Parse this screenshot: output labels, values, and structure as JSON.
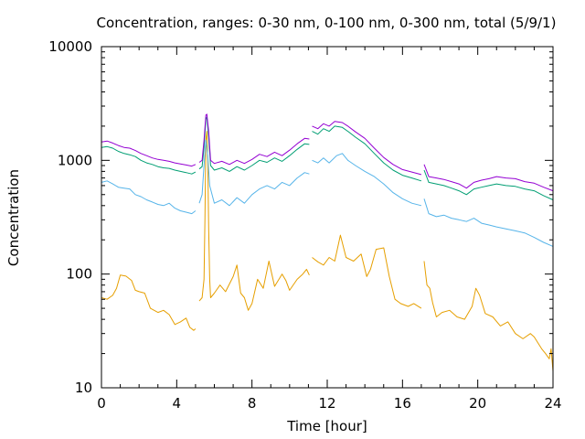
{
  "chart_data": {
    "type": "line",
    "title": "Concentration, ranges: 0-30 nm, 0-100 nm, 0-300 nm, total (5/9/1)",
    "xlabel": "Time [hour]",
    "ylabel": "Concentration",
    "xlim": [
      0,
      24
    ],
    "ylim": [
      10,
      10000
    ],
    "y_scale": "log",
    "x_ticks": [
      0,
      4,
      8,
      12,
      16,
      20,
      24
    ],
    "y_ticks": [
      10,
      100,
      1000,
      10000
    ],
    "y_tick_labels": [
      "10",
      "100",
      "1000",
      "10000"
    ],
    "grid": false,
    "series": [
      {
        "color": "#e69f00",
        "points": [
          [
            0.0,
            62
          ],
          [
            0.3,
            60
          ],
          [
            0.6,
            65
          ],
          [
            0.8,
            75
          ],
          [
            1.0,
            98
          ],
          [
            1.3,
            96
          ],
          [
            1.6,
            88
          ],
          [
            1.8,
            72
          ],
          [
            2.0,
            70
          ],
          [
            2.3,
            68
          ],
          [
            2.6,
            50
          ],
          [
            3.0,
            46
          ],
          [
            3.3,
            48
          ],
          [
            3.6,
            44
          ],
          [
            3.9,
            36
          ],
          [
            4.2,
            38
          ],
          [
            4.5,
            41
          ],
          [
            4.7,
            34
          ],
          [
            4.9,
            32
          ],
          [
            5.0,
            33
          ],
          null,
          [
            5.2,
            58
          ],
          [
            5.35,
            62
          ],
          [
            5.45,
            90
          ],
          [
            5.5,
            300
          ],
          [
            5.55,
            1500
          ],
          [
            5.6,
            1800
          ],
          [
            5.65,
            1000
          ],
          [
            5.7,
            250
          ],
          [
            5.75,
            90
          ],
          [
            5.8,
            62
          ],
          [
            6.0,
            68
          ],
          [
            6.3,
            80
          ],
          [
            6.6,
            70
          ],
          [
            7.0,
            95
          ],
          [
            7.2,
            120
          ],
          [
            7.4,
            68
          ],
          [
            7.6,
            62
          ],
          [
            7.8,
            48
          ],
          [
            8.0,
            55
          ],
          [
            8.3,
            90
          ],
          [
            8.6,
            75
          ],
          [
            8.9,
            130
          ],
          [
            9.2,
            78
          ],
          [
            9.6,
            100
          ],
          [
            9.8,
            88
          ],
          [
            10.0,
            72
          ],
          [
            10.4,
            90
          ],
          [
            10.7,
            100
          ],
          [
            10.9,
            110
          ],
          [
            11.05,
            98
          ],
          null,
          [
            11.2,
            140
          ],
          [
            11.5,
            128
          ],
          [
            11.8,
            120
          ],
          [
            12.1,
            140
          ],
          [
            12.4,
            130
          ],
          [
            12.7,
            220
          ],
          [
            13.0,
            140
          ],
          [
            13.4,
            130
          ],
          [
            13.8,
            150
          ],
          [
            14.1,
            95
          ],
          [
            14.3,
            110
          ],
          [
            14.6,
            165
          ],
          [
            15.0,
            170
          ],
          [
            15.3,
            95
          ],
          [
            15.6,
            60
          ],
          [
            15.9,
            55
          ],
          [
            16.3,
            52
          ],
          [
            16.6,
            55
          ],
          [
            17.0,
            50
          ],
          null,
          [
            17.15,
            130
          ],
          [
            17.3,
            80
          ],
          [
            17.45,
            75
          ],
          [
            17.6,
            56
          ],
          [
            17.8,
            42
          ],
          [
            18.1,
            46
          ],
          [
            18.5,
            48
          ],
          [
            18.9,
            42
          ],
          [
            19.3,
            40
          ],
          [
            19.7,
            52
          ],
          [
            19.9,
            75
          ],
          [
            20.1,
            65
          ],
          [
            20.4,
            45
          ],
          [
            20.8,
            42
          ],
          [
            21.2,
            35
          ],
          [
            21.6,
            38
          ],
          [
            22.0,
            30
          ],
          [
            22.4,
            27
          ],
          [
            22.8,
            30
          ],
          [
            23.0,
            28
          ],
          [
            23.4,
            22
          ],
          [
            23.6,
            20
          ],
          [
            23.8,
            18
          ],
          [
            23.9,
            22
          ],
          [
            24.0,
            14
          ]
        ]
      },
      {
        "color": "#56b4e9",
        "points": [
          [
            0.0,
            640
          ],
          [
            0.3,
            660
          ],
          [
            0.6,
            620
          ],
          [
            0.9,
            580
          ],
          [
            1.2,
            570
          ],
          [
            1.5,
            560
          ],
          [
            1.8,
            500
          ],
          [
            2.1,
            480
          ],
          [
            2.4,
            450
          ],
          [
            2.7,
            430
          ],
          [
            3.0,
            410
          ],
          [
            3.3,
            400
          ],
          [
            3.6,
            420
          ],
          [
            3.9,
            380
          ],
          [
            4.2,
            360
          ],
          [
            4.5,
            350
          ],
          [
            4.8,
            340
          ],
          [
            5.0,
            360
          ],
          null,
          [
            5.2,
            420
          ],
          [
            5.35,
            500
          ],
          [
            5.45,
            900
          ],
          [
            5.55,
            1500
          ],
          [
            5.65,
            1100
          ],
          [
            5.75,
            600
          ],
          [
            6.0,
            420
          ],
          [
            6.4,
            450
          ],
          [
            6.8,
            400
          ],
          [
            7.2,
            470
          ],
          [
            7.6,
            420
          ],
          [
            8.0,
            500
          ],
          [
            8.4,
            560
          ],
          [
            8.8,
            600
          ],
          [
            9.2,
            560
          ],
          [
            9.6,
            640
          ],
          [
            10.0,
            600
          ],
          [
            10.4,
            700
          ],
          [
            10.8,
            780
          ],
          [
            11.05,
            760
          ],
          null,
          [
            11.2,
            1000
          ],
          [
            11.5,
            950
          ],
          [
            11.8,
            1050
          ],
          [
            12.1,
            950
          ],
          [
            12.5,
            1100
          ],
          [
            12.8,
            1150
          ],
          [
            13.1,
            1000
          ],
          [
            13.5,
            900
          ],
          [
            14.0,
            800
          ],
          [
            14.5,
            720
          ],
          [
            15.0,
            620
          ],
          [
            15.5,
            520
          ],
          [
            16.0,
            460
          ],
          [
            16.5,
            420
          ],
          [
            17.0,
            400
          ],
          null,
          [
            17.15,
            460
          ],
          [
            17.4,
            340
          ],
          [
            17.8,
            320
          ],
          [
            18.2,
            330
          ],
          [
            18.6,
            310
          ],
          [
            19.0,
            300
          ],
          [
            19.4,
            290
          ],
          [
            19.8,
            310
          ],
          [
            20.2,
            280
          ],
          [
            20.6,
            270
          ],
          [
            21.0,
            260
          ],
          [
            21.5,
            250
          ],
          [
            22.0,
            240
          ],
          [
            22.5,
            230
          ],
          [
            23.0,
            210
          ],
          [
            23.5,
            190
          ],
          [
            24.0,
            175
          ]
        ]
      },
      {
        "color": "#009e73",
        "points": [
          [
            0.0,
            1300
          ],
          [
            0.3,
            1320
          ],
          [
            0.6,
            1280
          ],
          [
            0.9,
            1200
          ],
          [
            1.2,
            1150
          ],
          [
            1.5,
            1120
          ],
          [
            1.8,
            1080
          ],
          [
            2.1,
            1000
          ],
          [
            2.4,
            950
          ],
          [
            2.7,
            920
          ],
          [
            3.0,
            880
          ],
          [
            3.3,
            860
          ],
          [
            3.6,
            850
          ],
          [
            3.9,
            820
          ],
          [
            4.2,
            800
          ],
          [
            4.5,
            780
          ],
          [
            4.8,
            760
          ],
          [
            5.0,
            790
          ],
          null,
          [
            5.2,
            840
          ],
          [
            5.35,
            880
          ],
          [
            5.45,
            1300
          ],
          [
            5.55,
            2300
          ],
          [
            5.6,
            2400
          ],
          [
            5.7,
            1600
          ],
          [
            5.8,
            900
          ],
          [
            6.0,
            820
          ],
          [
            6.4,
            860
          ],
          [
            6.8,
            800
          ],
          [
            7.2,
            880
          ],
          [
            7.6,
            820
          ],
          [
            8.0,
            900
          ],
          [
            8.4,
            1000
          ],
          [
            8.8,
            960
          ],
          [
            9.2,
            1050
          ],
          [
            9.6,
            980
          ],
          [
            10.0,
            1100
          ],
          [
            10.4,
            1250
          ],
          [
            10.8,
            1400
          ],
          [
            11.05,
            1380
          ],
          null,
          [
            11.2,
            1800
          ],
          [
            11.5,
            1700
          ],
          [
            11.8,
            1900
          ],
          [
            12.1,
            1800
          ],
          [
            12.4,
            2000
          ],
          [
            12.8,
            1950
          ],
          [
            13.1,
            1800
          ],
          [
            13.5,
            1600
          ],
          [
            14.0,
            1400
          ],
          [
            14.5,
            1150
          ],
          [
            15.0,
            950
          ],
          [
            15.5,
            820
          ],
          [
            16.0,
            740
          ],
          [
            16.5,
            700
          ],
          [
            17.0,
            660
          ],
          null,
          [
            17.15,
            820
          ],
          [
            17.4,
            640
          ],
          [
            17.8,
            620
          ],
          [
            18.2,
            600
          ],
          [
            18.6,
            570
          ],
          [
            19.0,
            540
          ],
          [
            19.4,
            500
          ],
          [
            19.8,
            560
          ],
          [
            20.2,
            580
          ],
          [
            20.6,
            600
          ],
          [
            21.0,
            620
          ],
          [
            21.5,
            600
          ],
          [
            22.0,
            590
          ],
          [
            22.5,
            560
          ],
          [
            23.0,
            540
          ],
          [
            23.5,
            490
          ],
          [
            24.0,
            450
          ]
        ]
      },
      {
        "color": "#9400d3",
        "points": [
          [
            0.0,
            1450
          ],
          [
            0.3,
            1480
          ],
          [
            0.6,
            1420
          ],
          [
            0.9,
            1350
          ],
          [
            1.2,
            1300
          ],
          [
            1.5,
            1280
          ],
          [
            1.8,
            1220
          ],
          [
            2.1,
            1150
          ],
          [
            2.4,
            1100
          ],
          [
            2.7,
            1050
          ],
          [
            3.0,
            1020
          ],
          [
            3.3,
            1000
          ],
          [
            3.6,
            980
          ],
          [
            3.9,
            950
          ],
          [
            4.2,
            930
          ],
          [
            4.5,
            910
          ],
          [
            4.8,
            890
          ],
          [
            5.0,
            920
          ],
          null,
          [
            5.2,
            960
          ],
          [
            5.35,
            1000
          ],
          [
            5.45,
            1500
          ],
          [
            5.55,
            2500
          ],
          [
            5.6,
            2550
          ],
          [
            5.7,
            1800
          ],
          [
            5.8,
            1000
          ],
          [
            6.0,
            940
          ],
          [
            6.4,
            980
          ],
          [
            6.8,
            920
          ],
          [
            7.2,
            1000
          ],
          [
            7.6,
            940
          ],
          [
            8.0,
            1020
          ],
          [
            8.4,
            1130
          ],
          [
            8.8,
            1080
          ],
          [
            9.2,
            1180
          ],
          [
            9.6,
            1100
          ],
          [
            10.0,
            1230
          ],
          [
            10.4,
            1400
          ],
          [
            10.8,
            1560
          ],
          [
            11.05,
            1540
          ],
          null,
          [
            11.2,
            2000
          ],
          [
            11.5,
            1900
          ],
          [
            11.8,
            2100
          ],
          [
            12.1,
            2000
          ],
          [
            12.4,
            2200
          ],
          [
            12.8,
            2150
          ],
          [
            13.1,
            2000
          ],
          [
            13.5,
            1780
          ],
          [
            14.0,
            1560
          ],
          [
            14.5,
            1280
          ],
          [
            15.0,
            1060
          ],
          [
            15.5,
            920
          ],
          [
            16.0,
            830
          ],
          [
            16.5,
            790
          ],
          [
            17.0,
            750
          ],
          null,
          [
            17.15,
            920
          ],
          [
            17.4,
            720
          ],
          [
            17.8,
            700
          ],
          [
            18.2,
            680
          ],
          [
            18.6,
            650
          ],
          [
            19.0,
            620
          ],
          [
            19.4,
            570
          ],
          [
            19.8,
            640
          ],
          [
            20.2,
            670
          ],
          [
            20.6,
            690
          ],
          [
            21.0,
            720
          ],
          [
            21.5,
            700
          ],
          [
            22.0,
            690
          ],
          [
            22.5,
            650
          ],
          [
            23.0,
            630
          ],
          [
            23.5,
            580
          ],
          [
            24.0,
            540
          ]
        ]
      }
    ]
  }
}
